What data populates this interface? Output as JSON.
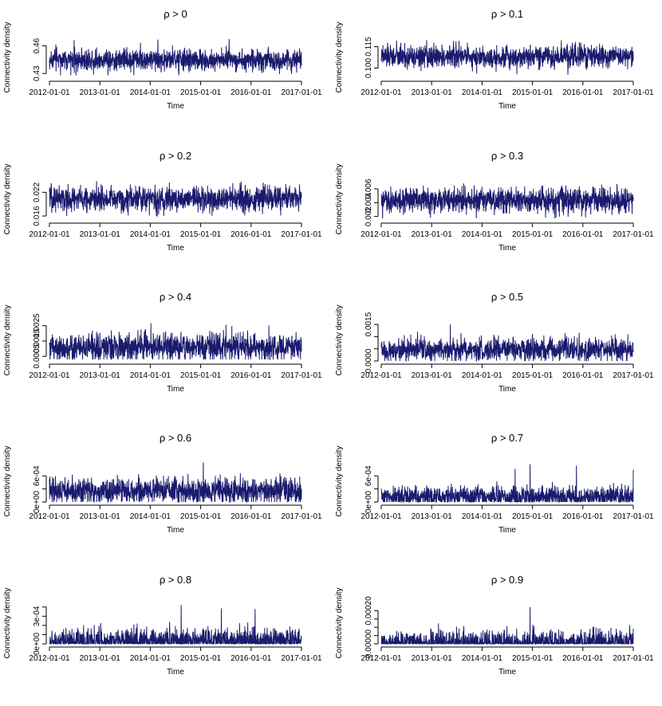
{
  "chart_data": [
    {
      "type": "line",
      "title": "ρ >  0",
      "xlabel": "Time",
      "ylabel": "Connectivity density",
      "x_start": "2012-01-01",
      "x_end": "2017-01-01",
      "x_ticks": [
        "2012-01-01",
        "2013-01-01",
        "2014-01-01",
        "2015-01-01",
        "2016-01-01",
        "2017-01-01"
      ],
      "ylim": [
        0.425,
        0.47
      ],
      "y_ticks": [
        0.43,
        0.46
      ],
      "y_tick_labels": [
        "0.43",
        "0.46"
      ],
      "series_summary": {
        "mean": 0.445,
        "spread": 0.006,
        "min": 0.428,
        "max": 0.468
      },
      "color": "#1a1a6e"
    },
    {
      "type": "line",
      "title": "ρ >  0.1",
      "xlabel": "Time",
      "ylabel": "Connectivity density",
      "x_start": "2012-01-01",
      "x_end": "2017-01-01",
      "x_ticks": [
        "2012-01-01",
        "2013-01-01",
        "2014-01-01",
        "2015-01-01",
        "2016-01-01",
        "2017-01-01"
      ],
      "ylim": [
        0.093,
        0.122
      ],
      "y_ticks": [
        0.1,
        0.115
      ],
      "y_tick_labels": [
        "0.100",
        "0.115"
      ],
      "series_summary": {
        "mean": 0.108,
        "spread": 0.004,
        "min": 0.094,
        "max": 0.121
      },
      "color": "#1a1a6e"
    },
    {
      "type": "line",
      "title": "ρ >  0.2",
      "xlabel": "Time",
      "ylabel": "Connectivity density",
      "x_start": "2012-01-01",
      "x_end": "2017-01-01",
      "x_ticks": [
        "2012-01-01",
        "2013-01-01",
        "2014-01-01",
        "2015-01-01",
        "2016-01-01",
        "2017-01-01"
      ],
      "ylim": [
        0.015,
        0.0255
      ],
      "y_ticks": [
        0.016,
        0.022
      ],
      "y_tick_labels": [
        "0.016",
        "0.022"
      ],
      "series_summary": {
        "mean": 0.0203,
        "spread": 0.0016,
        "min": 0.0155,
        "max": 0.025
      },
      "color": "#1a1a6e"
    },
    {
      "type": "line",
      "title": "ρ >  0.3",
      "xlabel": "Time",
      "ylabel": "Connectivity density",
      "x_start": "2012-01-01",
      "x_end": "2017-01-01",
      "x_ticks": [
        "2012-01-01",
        "2013-01-01",
        "2014-01-01",
        "2015-01-01",
        "2016-01-01",
        "2017-01-01"
      ],
      "ylim": [
        0.0015,
        0.0075
      ],
      "y_ticks": [
        0.002,
        0.004,
        0.006
      ],
      "y_tick_labels": [
        "0.002",
        "0.004",
        "0.006"
      ],
      "series_summary": {
        "mean": 0.0043,
        "spread": 0.0009,
        "min": 0.0017,
        "max": 0.0072
      },
      "color": "#1a1a6e"
    },
    {
      "type": "line",
      "title": "ρ >  0.4",
      "xlabel": "Time",
      "ylabel": "Connectivity density",
      "x_start": "2012-01-01",
      "x_end": "2017-01-01",
      "x_ticks": [
        "2012-01-01",
        "2013-01-01",
        "2014-01-01",
        "2015-01-01",
        "2016-01-01",
        "2017-01-01"
      ],
      "ylim": [
        0.0002,
        0.0029
      ],
      "y_ticks": [
        0.0005,
        0.0015,
        0.0025
      ],
      "y_tick_labels": [
        "0.0005",
        "0.0015",
        "0.0025"
      ],
      "series_summary": {
        "mean": 0.0011,
        "spread": 0.00045,
        "min": 0.0003,
        "max": 0.0028
      },
      "color": "#1a1a6e"
    },
    {
      "type": "line",
      "title": "ρ >  0.5",
      "xlabel": "Time",
      "ylabel": "Connectivity density",
      "x_start": "2012-01-01",
      "x_end": "2017-01-01",
      "x_ticks": [
        "2012-01-01",
        "2013-01-01",
        "2014-01-01",
        "2015-01-01",
        "2016-01-01",
        "2017-01-01"
      ],
      "ylim": [
        0,
        0.0017
      ],
      "y_ticks": [
        0,
        0.0005,
        0.001,
        0.0015
      ],
      "y_tick_labels": [
        "0.0000",
        "",
        "",
        "0.0015"
      ],
      "series_summary": {
        "mean": 0.00045,
        "spread": 0.00025,
        "min": 0,
        "max": 0.0016
      },
      "color": "#1a1a6e"
    },
    {
      "type": "line",
      "title": "ρ >  0.6",
      "xlabel": "Time",
      "ylabel": "Connectivity density",
      "x_start": "2012-01-01",
      "x_end": "2017-01-01",
      "x_ticks": [
        "2012-01-01",
        "2013-01-01",
        "2014-01-01",
        "2015-01-01",
        "2016-01-01",
        "2017-01-01"
      ],
      "ylim": [
        0,
        0.00095
      ],
      "y_ticks": [
        0,
        0.0003,
        0.0006
      ],
      "y_tick_labels": [
        "0e+00",
        "",
        "6e-04"
      ],
      "series_summary": {
        "mean": 0.00025,
        "spread": 0.00015,
        "min": 0,
        "max": 0.00091
      },
      "color": "#1a1a6e"
    },
    {
      "type": "line",
      "title": "ρ >  0.7",
      "xlabel": "Time",
      "ylabel": "Connectivity density",
      "x_start": "2012-01-01",
      "x_end": "2017-01-01",
      "x_ticks": [
        "2012-01-01",
        "2013-01-01",
        "2014-01-01",
        "2015-01-01",
        "2016-01-01",
        "2017-01-01"
      ],
      "ylim": [
        0,
        0.00095
      ],
      "y_ticks": [
        0,
        0.0003,
        0.0006
      ],
      "y_tick_labels": [
        "0e+00",
        "",
        "6e-04"
      ],
      "series_summary": {
        "mean": 0.00012,
        "spread": 0.00012,
        "min": 0,
        "max": 0.00091
      },
      "color": "#1a1a6e"
    },
    {
      "type": "line",
      "title": "ρ >  0.8",
      "xlabel": "Time",
      "ylabel": "Connectivity density",
      "x_start": "2012-01-01",
      "x_end": "2017-01-01",
      "x_ticks": [
        "2012-01-01",
        "2013-01-01",
        "2014-01-01",
        "2015-01-01",
        "2016-01-01",
        "2017-01-01"
      ],
      "ylim": [
        0,
        0.00045
      ],
      "y_ticks": [
        0,
        0.0001,
        0.0002,
        0.0003,
        0.0004
      ],
      "y_tick_labels": [
        "0e+00",
        "",
        "",
        "3e-04",
        ""
      ],
      "series_summary": {
        "mean": 3e-05,
        "spread": 7e-05,
        "min": 0,
        "max": 0.00045
      },
      "color": "#1a1a6e"
    },
    {
      "type": "line",
      "title": "ρ >  0.9",
      "xlabel": "Time",
      "ylabel": "Connectivity density",
      "x_start": "2012-01-01",
      "x_end": "2017-01-01",
      "x_ticks": [
        "2012-01-01",
        "2013-01-01",
        "2014-01-01",
        "2015-01-01",
        "2016-01-01",
        "2017-01-01"
      ],
      "ylim": [
        0,
        0.00025
      ],
      "y_ticks": [
        0,
        5e-05,
        0.0001,
        0.00015,
        0.0002
      ],
      "y_tick_labels": [
        "0.00000",
        "",
        "",
        "",
        "0.00020"
      ],
      "series_summary": {
        "mean": 5e-06,
        "spread": 4e-05,
        "min": 0,
        "max": 0.00023
      },
      "color": "#1a1a6e"
    }
  ]
}
